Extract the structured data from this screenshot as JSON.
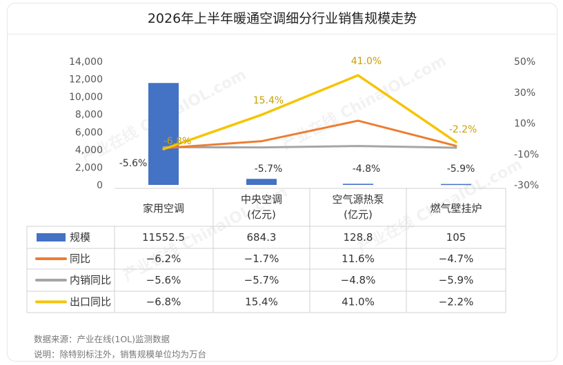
{
  "title": "2026年上半年暖通空调细分行业销售规模走势",
  "footer": {
    "source": "数据来源：产业在线(1OL)监测数据",
    "note": "说明：除特别标注外，销售规模单位均为万台"
  },
  "watermark": "产业在线 ChinaIOL.com",
  "chart_data": {
    "type": "bar+line",
    "categories": [
      "家用空调",
      "中央空调\n(亿元)",
      "空气源热泵\n(亿元)",
      "燃气壁挂炉"
    ],
    "left_axis": {
      "min": 0,
      "max": 14000,
      "ticks": [
        "0",
        "2,000",
        "4,000",
        "6,000",
        "8,000",
        "10,000",
        "12,000",
        "14,000"
      ]
    },
    "right_axis": {
      "min": -30,
      "max": 50,
      "ticks": [
        "-30%",
        "-10%",
        "10%",
        "30%",
        "50%"
      ]
    },
    "series": [
      {
        "name": "规模",
        "kind": "bar",
        "axis": "left",
        "color": "#4472c4",
        "values": [
          11552.5,
          684.3,
          128.8,
          105
        ],
        "labels": [
          "11552.5",
          "684.3",
          "128.8",
          "105"
        ]
      },
      {
        "name": "同比",
        "kind": "line",
        "axis": "right",
        "color": "#ed7d31",
        "values": [
          -6.2,
          -1.7,
          11.6,
          -4.7
        ],
        "labels": [
          "-6.2%",
          "-1.7%",
          "11.6%",
          "-4.7%"
        ]
      },
      {
        "name": "内销同比",
        "kind": "line",
        "axis": "right",
        "color": "#a5a5a5",
        "values": [
          -5.6,
          -5.7,
          -4.8,
          -5.9
        ],
        "labels": [
          "-5.6%",
          "-5.7%",
          "-4.8%",
          "-5.9%"
        ]
      },
      {
        "name": "出口同比",
        "kind": "line",
        "axis": "right",
        "color": "#f5c400",
        "values": [
          -6.8,
          15.4,
          41.0,
          -2.2
        ],
        "labels": [
          "-6.8%",
          "15.4%",
          "41.0%",
          "-2.2%"
        ]
      }
    ]
  }
}
